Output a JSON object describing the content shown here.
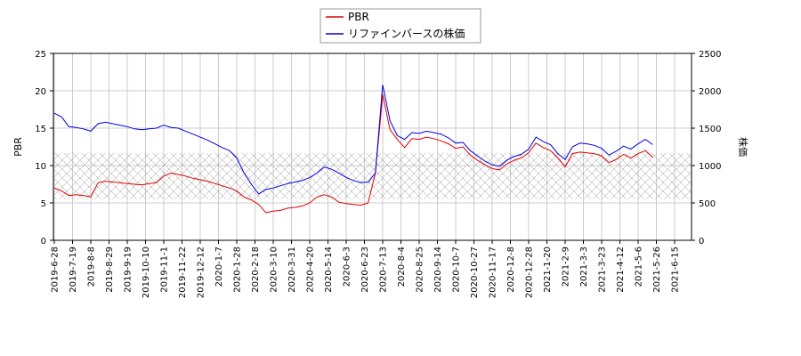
{
  "chart_data": {
    "type": "line",
    "ylabel_left": "PBR",
    "ylabel_right": "株価",
    "left_ylim": [
      0,
      25
    ],
    "left_yticks": [
      0,
      5,
      10,
      15,
      20,
      25
    ],
    "right_ylim": [
      0,
      2500
    ],
    "right_yticks": [
      0,
      500,
      1000,
      1500,
      2000,
      2500
    ],
    "x_tick_labels": [
      "2019-6-28",
      "2019-7-19",
      "2019-8-8",
      "2019-8-29",
      "2019-9-19",
      "2019-10-10",
      "2019-11-1",
      "2019-11-22",
      "2019-12-12",
      "2020-1-7",
      "2020-1-28",
      "2020-2-18",
      "2020-3-10",
      "2020-3-31",
      "2020-4-20",
      "2020-5-14",
      "2020-6-3",
      "2020-6-23",
      "2020-7-13",
      "2020-8-4",
      "2020-8-25",
      "2020-9-14",
      "2020-10-7",
      "2020-10-27",
      "2020-11-17",
      "2020-12-8",
      "2020-12-28",
      "2021-1-20",
      "2021-2-9",
      "2021-3-3",
      "2021-3-23",
      "2021-4-12",
      "2021-5-6",
      "2021-5-26",
      "2021-6-15"
    ],
    "grid": true,
    "legend_position": "top-center",
    "band": {
      "pbr_range": [
        5.5,
        11.7
      ],
      "pattern": "crosshatch"
    },
    "series": [
      {
        "name": "PBR",
        "axis": "left",
        "color": "#dd0000",
        "points": [
          [
            0,
            7.0
          ],
          [
            1,
            6.6
          ],
          [
            2,
            6.0
          ],
          [
            3,
            6.1
          ],
          [
            4,
            6.0
          ],
          [
            5,
            5.8
          ],
          [
            6,
            7.7
          ],
          [
            7,
            7.9
          ],
          [
            8,
            7.8
          ],
          [
            9,
            7.7
          ],
          [
            10,
            7.6
          ],
          [
            11,
            7.5
          ],
          [
            12,
            7.4
          ],
          [
            13,
            7.6
          ],
          [
            14,
            7.7
          ],
          [
            15,
            8.6
          ],
          [
            16,
            9.0
          ],
          [
            17,
            8.8
          ],
          [
            18,
            8.6
          ],
          [
            19,
            8.3
          ],
          [
            20,
            8.1
          ],
          [
            21,
            7.9
          ],
          [
            22,
            7.6
          ],
          [
            23,
            7.3
          ],
          [
            24,
            7.0
          ],
          [
            25,
            6.6
          ],
          [
            26,
            5.8
          ],
          [
            27,
            5.4
          ],
          [
            28,
            4.8
          ],
          [
            29,
            3.7
          ],
          [
            30,
            3.9
          ],
          [
            31,
            4.0
          ],
          [
            32,
            4.3
          ],
          [
            33,
            4.4
          ],
          [
            34,
            4.6
          ],
          [
            35,
            5.0
          ],
          [
            36,
            5.8
          ],
          [
            37,
            6.1
          ],
          [
            38,
            5.8
          ],
          [
            39,
            5.1
          ],
          [
            40,
            4.9
          ],
          [
            41,
            4.8
          ],
          [
            42,
            4.7
          ],
          [
            43,
            5.0
          ],
          [
            44,
            9.0
          ],
          [
            45,
            19.5
          ],
          [
            46,
            14.8
          ],
          [
            47,
            13.5
          ],
          [
            48,
            12.4
          ],
          [
            49,
            13.6
          ],
          [
            50,
            13.5
          ],
          [
            51,
            13.8
          ],
          [
            52,
            13.6
          ],
          [
            53,
            13.3
          ],
          [
            54,
            12.9
          ],
          [
            55,
            12.3
          ],
          [
            56,
            12.5
          ],
          [
            57,
            11.4
          ],
          [
            58,
            10.7
          ],
          [
            59,
            10.1
          ],
          [
            60,
            9.6
          ],
          [
            61,
            9.4
          ],
          [
            62,
            10.2
          ],
          [
            63,
            10.7
          ],
          [
            64,
            11.0
          ],
          [
            65,
            11.7
          ],
          [
            66,
            13.0
          ],
          [
            67,
            12.4
          ],
          [
            68,
            12.0
          ],
          [
            69,
            11.0
          ],
          [
            70,
            9.8
          ],
          [
            71,
            11.6
          ],
          [
            72,
            11.8
          ],
          [
            73,
            11.7
          ],
          [
            74,
            11.6
          ],
          [
            75,
            11.3
          ],
          [
            76,
            10.4
          ],
          [
            77,
            10.8
          ],
          [
            78,
            11.5
          ],
          [
            79,
            11.0
          ],
          [
            80,
            11.6
          ],
          [
            81,
            12.0
          ],
          [
            82,
            11.1
          ]
        ]
      },
      {
        "name": "リファインバースの株価",
        "axis": "right",
        "color": "#0000dd",
        "points": [
          [
            0,
            1700
          ],
          [
            1,
            1650
          ],
          [
            2,
            1520
          ],
          [
            3,
            1510
          ],
          [
            4,
            1490
          ],
          [
            5,
            1460
          ],
          [
            6,
            1560
          ],
          [
            7,
            1580
          ],
          [
            8,
            1560
          ],
          [
            9,
            1540
          ],
          [
            10,
            1520
          ],
          [
            11,
            1490
          ],
          [
            12,
            1480
          ],
          [
            13,
            1490
          ],
          [
            14,
            1500
          ],
          [
            15,
            1540
          ],
          [
            16,
            1510
          ],
          [
            17,
            1500
          ],
          [
            18,
            1460
          ],
          [
            19,
            1420
          ],
          [
            20,
            1380
          ],
          [
            21,
            1340
          ],
          [
            22,
            1290
          ],
          [
            23,
            1240
          ],
          [
            24,
            1200
          ],
          [
            25,
            1100
          ],
          [
            26,
            900
          ],
          [
            27,
            750
          ],
          [
            28,
            620
          ],
          [
            29,
            680
          ],
          [
            30,
            700
          ],
          [
            31,
            730
          ],
          [
            32,
            760
          ],
          [
            33,
            780
          ],
          [
            34,
            800
          ],
          [
            35,
            840
          ],
          [
            36,
            900
          ],
          [
            37,
            980
          ],
          [
            38,
            950
          ],
          [
            39,
            900
          ],
          [
            40,
            840
          ],
          [
            41,
            800
          ],
          [
            42,
            770
          ],
          [
            43,
            780
          ],
          [
            44,
            900
          ],
          [
            45,
            2080
          ],
          [
            46,
            1600
          ],
          [
            47,
            1400
          ],
          [
            48,
            1350
          ],
          [
            49,
            1440
          ],
          [
            50,
            1430
          ],
          [
            51,
            1460
          ],
          [
            52,
            1440
          ],
          [
            53,
            1420
          ],
          [
            54,
            1370
          ],
          [
            55,
            1300
          ],
          [
            56,
            1310
          ],
          [
            57,
            1200
          ],
          [
            58,
            1130
          ],
          [
            59,
            1060
          ],
          [
            60,
            1010
          ],
          [
            61,
            990
          ],
          [
            62,
            1070
          ],
          [
            63,
            1120
          ],
          [
            64,
            1150
          ],
          [
            65,
            1220
          ],
          [
            66,
            1380
          ],
          [
            67,
            1320
          ],
          [
            68,
            1280
          ],
          [
            69,
            1160
          ],
          [
            70,
            1080
          ],
          [
            71,
            1250
          ],
          [
            72,
            1300
          ],
          [
            73,
            1290
          ],
          [
            74,
            1270
          ],
          [
            75,
            1230
          ],
          [
            76,
            1140
          ],
          [
            77,
            1190
          ],
          [
            78,
            1260
          ],
          [
            79,
            1220
          ],
          [
            80,
            1290
          ],
          [
            81,
            1350
          ],
          [
            82,
            1280
          ]
        ]
      }
    ]
  }
}
